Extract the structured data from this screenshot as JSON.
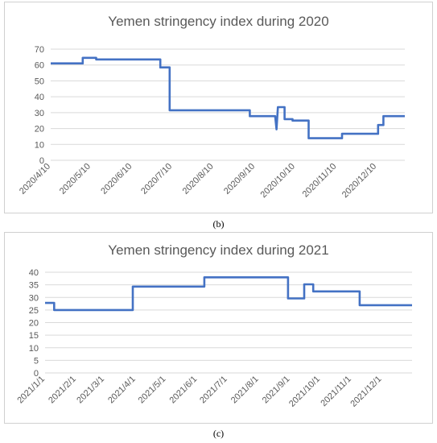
{
  "captions": [
    "(b)",
    "(c)"
  ],
  "chart_data": [
    {
      "type": "line",
      "title": "Yemen stringency index during 2020",
      "xlabel": "",
      "ylabel": "",
      "xlim": [
        "2020-04-10",
        "2020-12-31"
      ],
      "ylim": [
        0,
        70
      ],
      "yticks": [
        0,
        10,
        20,
        30,
        40,
        50,
        60,
        70
      ],
      "xticks": [
        "2020/4/10",
        "2020/5/10",
        "2020/6/10",
        "2020/7/10",
        "2020/8/10",
        "2020/9/10",
        "2020/10/10",
        "2020/11/10",
        "2020/12/10"
      ],
      "grid": true,
      "line_color": "#4472c4",
      "series": [
        {
          "x": [
            "2020-04-10",
            "2020-05-04",
            "2020-05-04",
            "2020-05-14",
            "2020-05-14",
            "2020-07-01",
            "2020-07-01",
            "2020-07-08",
            "2020-07-08",
            "2020-09-06",
            "2020-09-06",
            "2020-09-25",
            "2020-09-26",
            "2020-09-27",
            "2020-09-27",
            "2020-10-02",
            "2020-10-02",
            "2020-10-08",
            "2020-10-08",
            "2020-10-20",
            "2020-10-20",
            "2020-11-14",
            "2020-11-14",
            "2020-12-11",
            "2020-12-11",
            "2020-12-15",
            "2020-12-15",
            "2020-12-31"
          ],
          "y": [
            61,
            61,
            64.5,
            64.5,
            63.5,
            63.5,
            58.5,
            58.5,
            31.5,
            31.5,
            27.8,
            27.8,
            19.5,
            33.5,
            33.5,
            33.5,
            25.9,
            25.9,
            25,
            25,
            13.9,
            13.9,
            16.7,
            16.7,
            22.2,
            22.2,
            27.8,
            27.8
          ]
        }
      ]
    },
    {
      "type": "line",
      "title": "Yemen stringency index during 2021",
      "xlabel": "",
      "ylabel": "",
      "xlim": [
        "2021-01-01",
        "2021-12-31"
      ],
      "ylim": [
        0,
        40
      ],
      "yticks": [
        0,
        5,
        10,
        15,
        20,
        25,
        30,
        35,
        40
      ],
      "xticks": [
        "2021/1/1",
        "2021/2/1",
        "2021/3/1",
        "2021/4/1",
        "2021/5/1",
        "2021/6/1",
        "2021/7/1",
        "2021/8/1",
        "2021/9/1",
        "2021/10/1",
        "2021/11/1",
        "2021/12/1"
      ],
      "grid": true,
      "line_color": "#4472c4",
      "series": [
        {
          "x": [
            "2021-01-01",
            "2021-01-10",
            "2021-01-10",
            "2021-03-29",
            "2021-03-29",
            "2021-06-08",
            "2021-06-08",
            "2021-08-30",
            "2021-08-30",
            "2021-09-15",
            "2021-09-15",
            "2021-09-24",
            "2021-09-24",
            "2021-11-09",
            "2021-11-09",
            "2021-12-31"
          ],
          "y": [
            27.8,
            27.8,
            25,
            25,
            34.3,
            34.3,
            38,
            38,
            29.6,
            29.6,
            35.2,
            35.2,
            32.4,
            32.4,
            26.9,
            26.9
          ]
        }
      ]
    }
  ]
}
